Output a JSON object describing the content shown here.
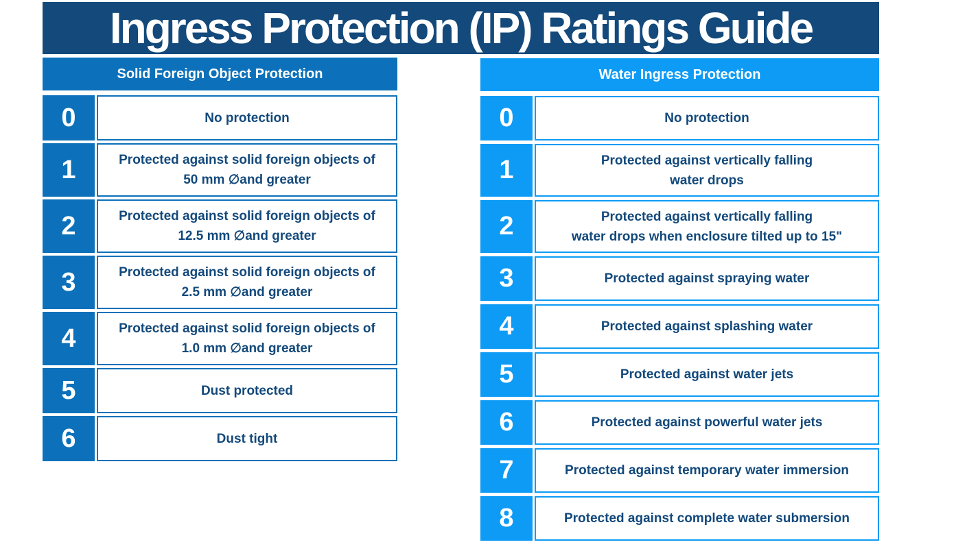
{
  "page": {
    "title": "Ingress Protection (IP) Ratings Guide"
  },
  "colors": {
    "navy": "#13497B",
    "left_blue": "#0C71BA",
    "right_blue": "#0D9BF5"
  },
  "left_table": {
    "header": "Solid Foreign Object Protection",
    "rows": [
      {
        "rating": "0",
        "lines": [
          "No protection"
        ]
      },
      {
        "rating": "1",
        "lines": [
          "Protected against solid foreign objects of",
          "50 mm ∅and greater"
        ]
      },
      {
        "rating": "2",
        "lines": [
          "Protected against solid foreign objects of",
          "12.5 mm ∅and greater"
        ]
      },
      {
        "rating": "3",
        "lines": [
          "Protected against solid foreign objects of",
          "2.5 mm ∅and greater"
        ]
      },
      {
        "rating": "4",
        "lines": [
          "Protected against solid foreign objects of",
          "1.0 mm ∅and greater"
        ]
      },
      {
        "rating": "5",
        "lines": [
          "Dust protected"
        ]
      },
      {
        "rating": "6",
        "lines": [
          "Dust tight"
        ]
      }
    ]
  },
  "right_table": {
    "header": "Water Ingress Protection",
    "rows": [
      {
        "rating": "0",
        "lines": [
          "No protection"
        ]
      },
      {
        "rating": "1",
        "lines": [
          "Protected against vertically falling",
          "water drops"
        ]
      },
      {
        "rating": "2",
        "lines": [
          "Protected against vertically falling",
          "water drops when enclosure tilted up to 15\""
        ]
      },
      {
        "rating": "3",
        "lines": [
          "Protected against spraying water"
        ]
      },
      {
        "rating": "4",
        "lines": [
          "Protected against splashing water"
        ]
      },
      {
        "rating": "5",
        "lines": [
          "Protected against water jets"
        ]
      },
      {
        "rating": "6",
        "lines": [
          "Protected against powerful water jets"
        ]
      },
      {
        "rating": "7",
        "lines": [
          "Protected against temporary water immersion"
        ]
      },
      {
        "rating": "8",
        "lines": [
          "Protected against complete water submersion"
        ]
      }
    ]
  }
}
